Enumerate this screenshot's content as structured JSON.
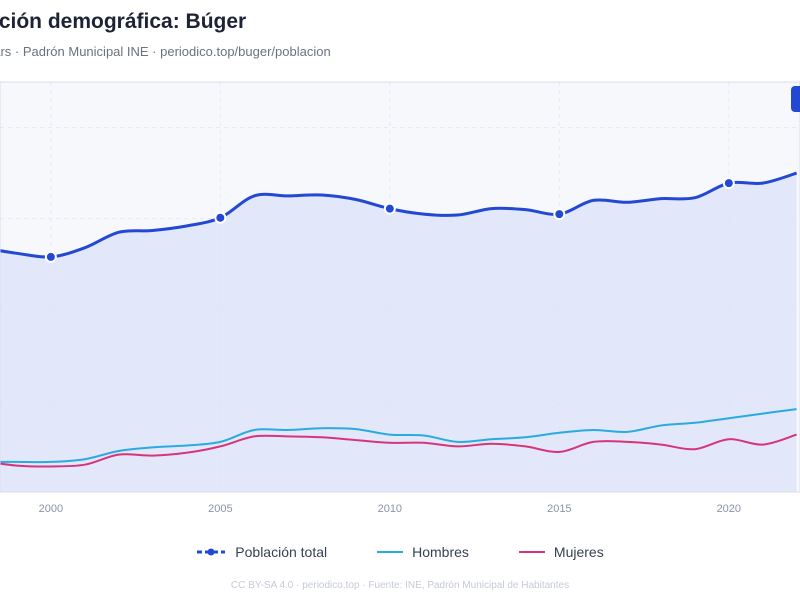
{
  "header": {
    "title": "ución demográfica: Búger",
    "subtitle": "ears · Padrón Municipal INE · periodico.top/buger/poblacion"
  },
  "legend": {
    "total": "Población total",
    "hombres": "Hombres",
    "mujeres": "Mujeres"
  },
  "footer": "CC BY-SA 4.0 · periodico.top · Fuente: INE, Padrón Municipal de Habitantes",
  "colors": {
    "total": "#2348d4",
    "hombres": "#29abe2",
    "mujeres": "#d6357a",
    "area": "#dfe4f8",
    "grid": "#e5e9f2",
    "plot_bg": "#f7f8fc"
  },
  "chart_data": {
    "type": "line",
    "x_range": [
      1998.5,
      2022.1
    ],
    "y_range": [
      0,
      450
    ],
    "x_ticks": [
      "2000",
      "2005",
      "2010",
      "2015",
      "2020"
    ],
    "grid": true,
    "legend_position": "bottom",
    "series": [
      {
        "name": "Población total",
        "markers_at": [
          2000,
          2005,
          2010,
          2015,
          2020
        ],
        "x": [
          1998,
          1999,
          2000,
          2001,
          2002,
          2003,
          2004,
          2005,
          2006,
          2007,
          2008,
          2009,
          2010,
          2011,
          2012,
          2013,
          2014,
          2015,
          2016,
          2017,
          2018,
          2019,
          2020,
          2021,
          2022
        ],
        "y": [
          268,
          262,
          258,
          268,
          285,
          287,
          292,
          301,
          325,
          325,
          326,
          321,
          311,
          305,
          304,
          311,
          310,
          305,
          320,
          318,
          322,
          323,
          339,
          339,
          350
        ]
      },
      {
        "name": "Hombres",
        "x": [
          1998,
          1999,
          2000,
          2001,
          2002,
          2003,
          2004,
          2005,
          2006,
          2007,
          2008,
          2009,
          2010,
          2011,
          2012,
          2013,
          2014,
          2015,
          2016,
          2017,
          2018,
          2019,
          2020,
          2021,
          2022
        ],
        "y": [
          33,
          33,
          33,
          36,
          45,
          49,
          51,
          55,
          68,
          68,
          70,
          69,
          63,
          62,
          55,
          58,
          60,
          65,
          68,
          66,
          73,
          76,
          81,
          86,
          91
        ]
      },
      {
        "name": "Mujeres",
        "x": [
          1998,
          1999,
          2000,
          2001,
          2002,
          2003,
          2004,
          2005,
          2006,
          2007,
          2008,
          2009,
          2010,
          2011,
          2012,
          2013,
          2014,
          2015,
          2016,
          2017,
          2018,
          2019,
          2020,
          2021,
          2022
        ],
        "y": [
          34,
          29,
          28,
          30,
          41,
          40,
          43,
          50,
          61,
          61,
          60,
          57,
          54,
          54,
          50,
          53,
          50,
          44,
          55,
          55,
          52,
          47,
          58,
          52,
          63
        ]
      }
    ]
  }
}
